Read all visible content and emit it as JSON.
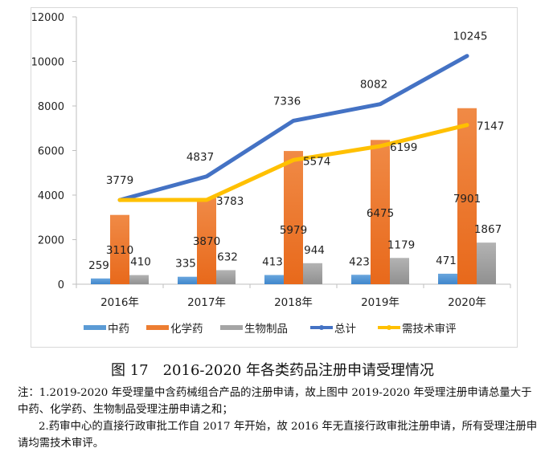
{
  "chart_data": {
    "type": "bar",
    "title": "",
    "xlabel": "",
    "ylabel": "",
    "categories": [
      "2016年",
      "2017年",
      "2018年",
      "2019年",
      "2020年"
    ],
    "ylim": [
      0,
      12000
    ],
    "yticks": [
      0,
      2000,
      4000,
      6000,
      8000,
      10000,
      12000
    ],
    "ytick_labels": [
      "0",
      "2000",
      "4000",
      "6000",
      "8000",
      "10000",
      "12000"
    ],
    "grid": false,
    "legend_position": "bottom",
    "series": [
      {
        "name": "中药",
        "type": "bar",
        "color": "#5B9BD5",
        "values": [
          259,
          335,
          413,
          423,
          471
        ],
        "labels": [
          "259",
          "335",
          "413",
          "423",
          "471"
        ]
      },
      {
        "name": "化学药",
        "type": "bar",
        "color": "#ED7D31",
        "values": [
          3110,
          3870,
          5979,
          6475,
          7901
        ],
        "labels": [
          "3110",
          "3870",
          "5979",
          "6475",
          "7901"
        ]
      },
      {
        "name": "生物制品",
        "type": "bar",
        "color": "#A5A5A5",
        "values": [
          410,
          632,
          944,
          1179,
          1867
        ],
        "labels": [
          "410",
          "632",
          "944",
          "1179",
          "1867"
        ]
      },
      {
        "name": "总计",
        "type": "line",
        "color": "#4472C4",
        "values": [
          3779,
          4837,
          7336,
          8082,
          10245
        ],
        "labels": [
          "3779",
          "4837",
          "7336",
          "8082",
          "10245"
        ]
      },
      {
        "name": "需技术审评",
        "type": "line",
        "color": "#FFC000",
        "values": [
          3779,
          3783,
          5574,
          6199,
          7147
        ],
        "labels": [
          "",
          "3783",
          "5574",
          "6199",
          "7147"
        ]
      }
    ]
  },
  "caption": "图 17　2016-2020 年各类药品注册申请受理情况",
  "notes": {
    "note1": "注：1.2019-2020 年受理量中含药械组合产品的注册申请，故上图中 2019-2020 年受理注册申请总量大于中药、化学药、生物制品受理注册申请之和；",
    "note2": "2.药审中心的直接行政审批工作自 2017 年开始，故 2016 年无直接行政审批注册申请，所有受理注册申请均需技术审评。"
  }
}
